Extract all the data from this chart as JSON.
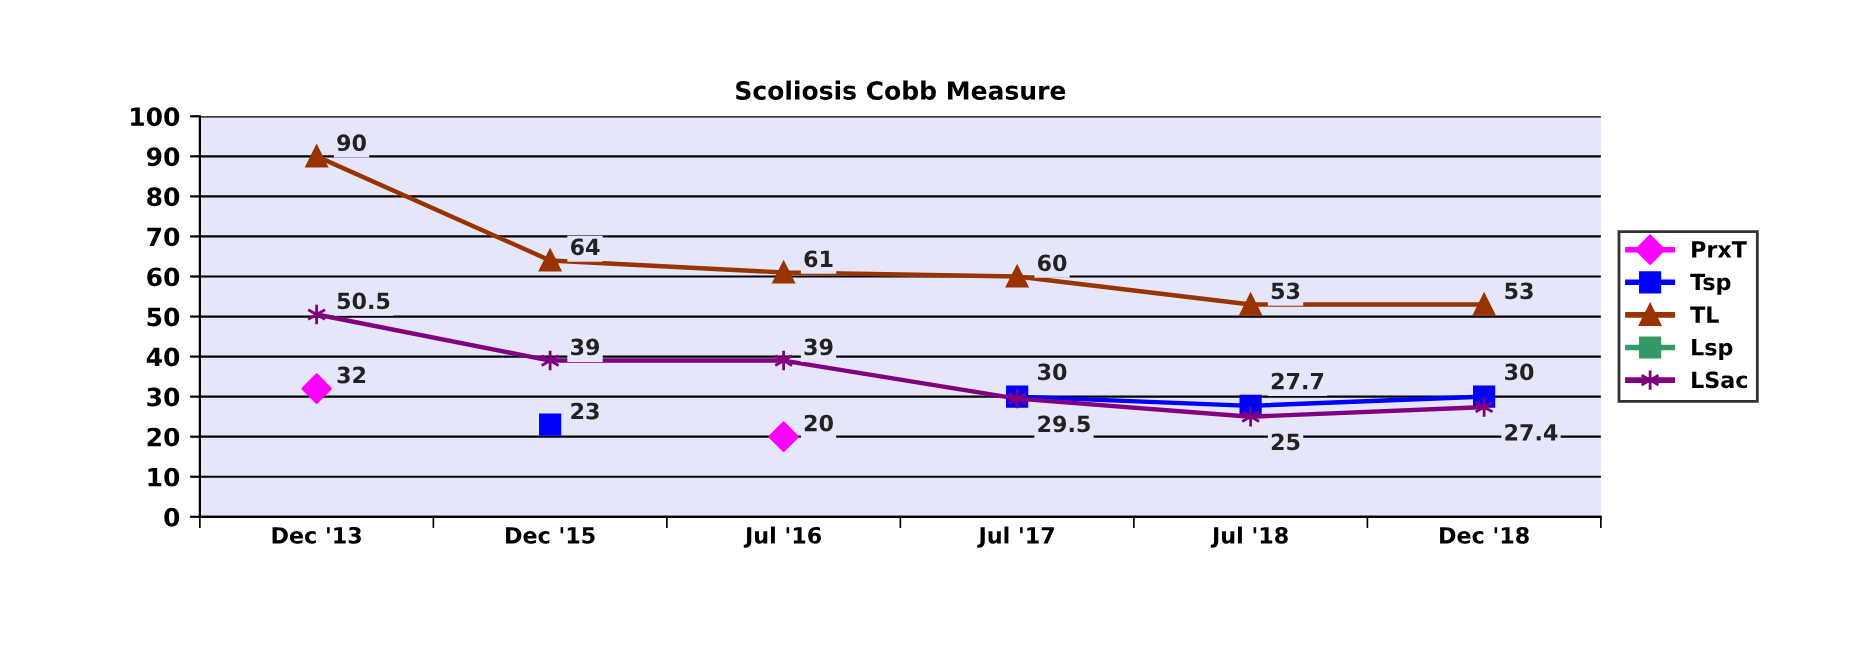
{
  "chart_data": {
    "type": "line",
    "title": "Scoliosis Cobb Measure",
    "categories": [
      "Dec '13",
      "Dec '15",
      "Jul '16",
      "Jul '17",
      "Jul '18",
      "Dec '18"
    ],
    "series": [
      {
        "name": "PrxT",
        "type": "scatter",
        "color": "#ff00ff",
        "marker": "diamond",
        "values": [
          32,
          null,
          20,
          null,
          null,
          null
        ]
      },
      {
        "name": "Tsp",
        "color": "#0000ff",
        "marker": "square",
        "values": [
          null,
          23,
          null,
          30,
          27.7,
          30
        ]
      },
      {
        "name": "TL",
        "color": "#993300",
        "marker": "triangle",
        "values": [
          90,
          64,
          61,
          60,
          53,
          53
        ]
      },
      {
        "name": "Lsp",
        "color": "#339966",
        "marker": "square",
        "values": [
          null,
          null,
          null,
          null,
          null,
          null
        ]
      },
      {
        "name": "LSac",
        "color": "#800080",
        "marker": "cross",
        "values": [
          50.5,
          39,
          39,
          29.5,
          25,
          27.4
        ]
      }
    ],
    "ylim": [
      0,
      100
    ],
    "yticks": [
      0,
      10,
      20,
      30,
      40,
      50,
      60,
      70,
      80,
      90,
      100
    ],
    "grid": "y",
    "legend": "right",
    "data_labels": true
  }
}
